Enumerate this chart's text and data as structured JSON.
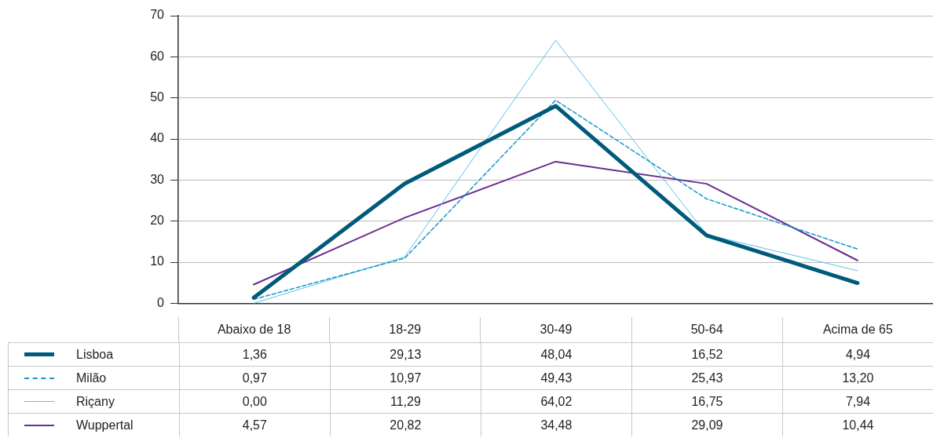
{
  "chart_data": {
    "type": "line",
    "categories": [
      "Abaixo de 18",
      "18-29",
      "30-49",
      "50-64",
      "Acima de 65"
    ],
    "ylim": [
      0,
      70
    ],
    "yticks": [
      0,
      10,
      20,
      30,
      40,
      50,
      60,
      70
    ],
    "grid": "y",
    "legend": "bottom left",
    "marker": "none",
    "series": [
      {
        "name": "Lisboa",
        "color": "#005a7a",
        "line_style": "solid",
        "values": [
          1.36,
          29.13,
          48.04,
          16.52,
          4.94
        ],
        "value_labels": [
          "1,36",
          "29,13",
          "48,04",
          "16,52",
          "4,94"
        ]
      },
      {
        "name": "Milão",
        "color": "#1596c8",
        "line_style": "dashed",
        "values": [
          0.97,
          10.97,
          49.43,
          25.43,
          13.2
        ],
        "value_labels": [
          "0,97",
          "10,97",
          "49,43",
          "25,43",
          "13,20"
        ]
      },
      {
        "name": "Riçany",
        "color": "#5bc0eb",
        "line_style": "solid",
        "values": [
          0,
          11.29,
          64.02,
          16.75,
          7.94
        ],
        "value_labels": [
          "0,00",
          "11,29",
          "64,02",
          "16,75",
          "7,94"
        ]
      },
      {
        "name": "Wuppertal",
        "color": "#6a2c91",
        "line_style": "solid",
        "values": [
          4.57,
          20.82,
          34.48,
          29.09,
          10.44
        ],
        "value_labels": [
          "4,57",
          "20,82",
          "34,48",
          "29,09",
          "10,44"
        ]
      }
    ]
  }
}
